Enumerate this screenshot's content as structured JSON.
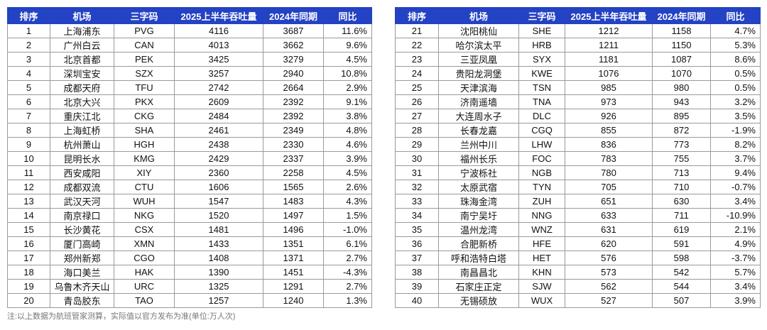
{
  "tables": [
    {
      "header": [
        "排序",
        "机场",
        "三字码",
        "2025上半年吞吐量",
        "2024年同期",
        "同比"
      ],
      "rows": [
        [
          1,
          "上海浦东",
          "PVG",
          4116,
          3687,
          "11.6%"
        ],
        [
          2,
          "广州白云",
          "CAN",
          4013,
          3662,
          "9.6%"
        ],
        [
          3,
          "北京首都",
          "PEK",
          3425,
          3279,
          "4.5%"
        ],
        [
          4,
          "深圳宝安",
          "SZX",
          3257,
          2940,
          "10.8%"
        ],
        [
          5,
          "成都天府",
          "TFU",
          2742,
          2664,
          "2.9%"
        ],
        [
          6,
          "北京大兴",
          "PKX",
          2609,
          2392,
          "9.1%"
        ],
        [
          7,
          "重庆江北",
          "CKG",
          2484,
          2392,
          "3.8%"
        ],
        [
          8,
          "上海虹桥",
          "SHA",
          2461,
          2349,
          "4.8%"
        ],
        [
          9,
          "杭州萧山",
          "HGH",
          2438,
          2330,
          "4.6%"
        ],
        [
          10,
          "昆明长水",
          "KMG",
          2429,
          2337,
          "3.9%"
        ],
        [
          11,
          "西安咸阳",
          "XIY",
          2360,
          2258,
          "4.5%"
        ],
        [
          12,
          "成都双流",
          "CTU",
          1606,
          1565,
          "2.6%"
        ],
        [
          13,
          "武汉天河",
          "WUH",
          1547,
          1483,
          "4.3%"
        ],
        [
          14,
          "南京禄口",
          "NKG",
          1520,
          1497,
          "1.5%"
        ],
        [
          15,
          "长沙黄花",
          "CSX",
          1481,
          1496,
          "-1.0%"
        ],
        [
          16,
          "厦门高崎",
          "XMN",
          1433,
          1351,
          "6.1%"
        ],
        [
          17,
          "郑州新郑",
          "CGO",
          1408,
          1371,
          "2.7%"
        ],
        [
          18,
          "海口美兰",
          "HAK",
          1390,
          1451,
          "-4.3%"
        ],
        [
          19,
          "乌鲁木齐天山",
          "URC",
          1325,
          1291,
          "2.7%"
        ],
        [
          20,
          "青岛胶东",
          "TAO",
          1257,
          1240,
          "1.3%"
        ]
      ]
    },
    {
      "header": [
        "排序",
        "机场",
        "三字码",
        "2025上半年吞吐量",
        "2024年同期",
        "同比"
      ],
      "rows": [
        [
          21,
          "沈阳桃仙",
          "SHE",
          1212,
          1158,
          "4.7%"
        ],
        [
          22,
          "哈尔滨太平",
          "HRB",
          1211,
          1150,
          "5.3%"
        ],
        [
          23,
          "三亚凤凰",
          "SYX",
          1181,
          1087,
          "8.6%"
        ],
        [
          24,
          "贵阳龙洞堡",
          "KWE",
          1076,
          1070,
          "0.5%"
        ],
        [
          25,
          "天津滨海",
          "TSN",
          985,
          980,
          "0.5%"
        ],
        [
          26,
          "济南遥墙",
          "TNA",
          973,
          943,
          "3.2%"
        ],
        [
          27,
          "大连周水子",
          "DLC",
          926,
          895,
          "3.5%"
        ],
        [
          28,
          "长春龙嘉",
          "CGQ",
          855,
          872,
          "-1.9%"
        ],
        [
          29,
          "兰州中川",
          "LHW",
          836,
          773,
          "8.2%"
        ],
        [
          30,
          "福州长乐",
          "FOC",
          783,
          755,
          "3.7%"
        ],
        [
          31,
          "宁波栎社",
          "NGB",
          780,
          713,
          "9.4%"
        ],
        [
          32,
          "太原武宿",
          "TYN",
          705,
          710,
          "-0.7%"
        ],
        [
          33,
          "珠海金湾",
          "ZUH",
          651,
          630,
          "3.4%"
        ],
        [
          34,
          "南宁吴圩",
          "NNG",
          633,
          711,
          "-10.9%"
        ],
        [
          35,
          "温州龙湾",
          "WNZ",
          631,
          619,
          "2.1%"
        ],
        [
          36,
          "合肥新桥",
          "HFE",
          620,
          591,
          "4.9%"
        ],
        [
          37,
          "呼和浩特白塔",
          "HET",
          576,
          598,
          "-3.7%"
        ],
        [
          38,
          "南昌昌北",
          "KHN",
          573,
          542,
          "5.7%"
        ],
        [
          39,
          "石家庄正定",
          "SJW",
          562,
          544,
          "3.4%"
        ],
        [
          40,
          "无锡硕放",
          "WUX",
          527,
          507,
          "3.9%"
        ]
      ]
    }
  ],
  "footnote": "注:以上数据为航班管家测算，实际值以官方发布为准(单位:万人次)"
}
